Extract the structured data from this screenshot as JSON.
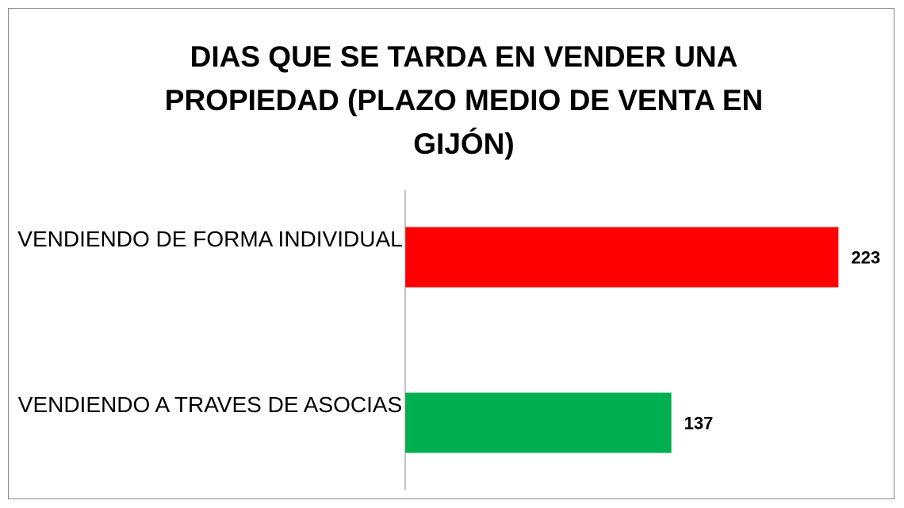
{
  "chart_data": {
    "type": "bar",
    "orientation": "horizontal",
    "title": "DIAS QUE SE TARDA EN VENDER UNA PROPIEDAD (PLAZO MEDIO DE VENTA  EN GIJÓN)",
    "categories": [
      "VENDIENDO DE FORMA INDIVIDUAL",
      "VENDIENDO A TRAVES DE ASOCIAS"
    ],
    "values": [
      223,
      137
    ],
    "colors": [
      "#ff0000",
      "#00b050"
    ],
    "xlim": [
      0,
      240
    ]
  }
}
